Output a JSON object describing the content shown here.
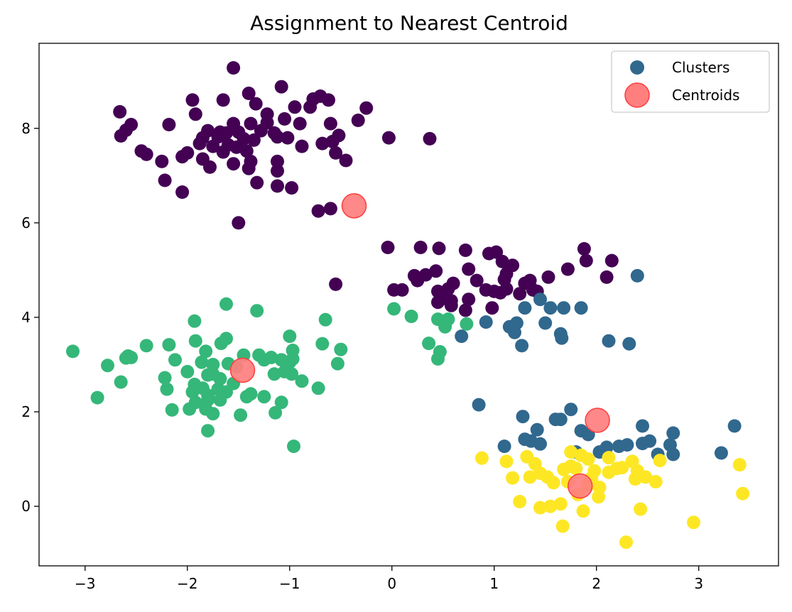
{
  "chart_data": {
    "type": "scatter",
    "title": "Assignment to Nearest Centroid",
    "xlabel": "",
    "ylabel": "",
    "xlim": [
      -3.45,
      3.78
    ],
    "ylim": [
      -1.26,
      9.8
    ],
    "xticks": [
      -3,
      -2,
      -1,
      0,
      1,
      2,
      3
    ],
    "yticks": [
      0,
      2,
      4,
      6,
      8
    ],
    "xtick_labels": [
      "−3",
      "−2",
      "−1",
      "0",
      "1",
      "2",
      "3"
    ],
    "ytick_labels": [
      "0",
      "2",
      "4",
      "6",
      "8"
    ],
    "grid": false,
    "legend": {
      "placement": "top-right",
      "entries": [
        {
          "label": "Clusters",
          "color": "#31688e"
        },
        {
          "label": "Centroids",
          "color": "#ff7f7f"
        }
      ]
    },
    "colors": {
      "cluster_0": "#440154",
      "cluster_1": "#31688e",
      "cluster_2": "#35b779",
      "cluster_3": "#fde725",
      "centroid_fill": "#ff7f7f",
      "centroid_edge": "#ff3b3b"
    },
    "series": [
      {
        "cluster": 0,
        "color": "#440154",
        "points": [
          [
            -1.55,
            9.28
          ],
          [
            -1.08,
            8.88
          ],
          [
            -0.7,
            8.68
          ],
          [
            -0.77,
            8.62
          ],
          [
            -0.62,
            8.6
          ],
          [
            -1.95,
            8.6
          ],
          [
            -1.65,
            8.6
          ],
          [
            -1.4,
            8.74
          ],
          [
            -1.33,
            8.52
          ],
          [
            -0.25,
            8.43
          ],
          [
            -0.95,
            8.45
          ],
          [
            -0.8,
            8.45
          ],
          [
            -2.66,
            8.35
          ],
          [
            -1.92,
            8.3
          ],
          [
            -1.22,
            8.3
          ],
          [
            -1.05,
            8.2
          ],
          [
            -2.55,
            8.08
          ],
          [
            -2.18,
            8.08
          ],
          [
            -1.55,
            8.1
          ],
          [
            -1.38,
            8.1
          ],
          [
            -1.22,
            8.12
          ],
          [
            -0.9,
            8.1
          ],
          [
            -0.6,
            8.1
          ],
          [
            -0.33,
            8.17
          ],
          [
            -2.6,
            7.96
          ],
          [
            -1.8,
            7.95
          ],
          [
            -1.68,
            7.92
          ],
          [
            -1.62,
            7.9
          ],
          [
            -1.5,
            7.92
          ],
          [
            -1.28,
            7.95
          ],
          [
            -1.15,
            7.9
          ],
          [
            -0.03,
            7.8
          ],
          [
            0.37,
            7.78
          ],
          [
            -2.65,
            7.84
          ],
          [
            -1.85,
            7.8
          ],
          [
            -1.7,
            7.82
          ],
          [
            -1.45,
            7.78
          ],
          [
            -1.35,
            7.75
          ],
          [
            -1.12,
            7.82
          ],
          [
            -1.02,
            7.8
          ],
          [
            -0.52,
            7.85
          ],
          [
            -0.68,
            7.68
          ],
          [
            -0.58,
            7.72
          ],
          [
            -1.88,
            7.68
          ],
          [
            -1.75,
            7.62
          ],
          [
            -1.6,
            7.65
          ],
          [
            -1.52,
            7.6
          ],
          [
            -0.88,
            7.62
          ],
          [
            -2.45,
            7.52
          ],
          [
            -2.4,
            7.45
          ],
          [
            -2.05,
            7.4
          ],
          [
            -2.0,
            7.48
          ],
          [
            -1.65,
            7.5
          ],
          [
            -1.42,
            7.52
          ],
          [
            -0.55,
            7.48
          ],
          [
            -2.25,
            7.3
          ],
          [
            -1.85,
            7.35
          ],
          [
            -1.78,
            7.18
          ],
          [
            -1.55,
            7.25
          ],
          [
            -1.38,
            7.3
          ],
          [
            -1.12,
            7.3
          ],
          [
            -0.45,
            7.32
          ],
          [
            -1.4,
            7.15
          ],
          [
            -1.12,
            7.1
          ],
          [
            -2.22,
            6.9
          ],
          [
            -1.32,
            6.85
          ],
          [
            -1.12,
            6.78
          ],
          [
            -0.98,
            6.74
          ],
          [
            -2.05,
            6.65
          ],
          [
            -0.72,
            6.25
          ],
          [
            -0.6,
            6.3
          ],
          [
            -1.5,
            6.0
          ],
          [
            -0.55,
            4.7
          ],
          [
            -0.04,
            5.48
          ],
          [
            0.28,
            5.48
          ],
          [
            0.46,
            5.46
          ],
          [
            0.72,
            5.42
          ],
          [
            0.95,
            5.35
          ],
          [
            1.02,
            5.38
          ],
          [
            1.08,
            5.18
          ],
          [
            1.18,
            5.1
          ],
          [
            1.88,
            5.45
          ],
          [
            1.9,
            5.2
          ],
          [
            2.15,
            5.2
          ],
          [
            0.75,
            5.02
          ],
          [
            1.12,
            4.92
          ],
          [
            0.22,
            4.88
          ],
          [
            0.33,
            4.9
          ],
          [
            0.43,
            4.98
          ],
          [
            0.6,
            4.72
          ],
          [
            0.83,
            4.78
          ],
          [
            1.1,
            4.8
          ],
          [
            1.3,
            4.72
          ],
          [
            1.35,
            4.78
          ],
          [
            1.53,
            4.85
          ],
          [
            1.72,
            5.02
          ],
          [
            2.1,
            4.85
          ],
          [
            0.25,
            4.78
          ],
          [
            0.55,
            4.6
          ],
          [
            0.92,
            4.58
          ],
          [
            1.0,
            4.55
          ],
          [
            1.06,
            4.52
          ],
          [
            1.12,
            4.6
          ],
          [
            1.25,
            4.5
          ],
          [
            1.42,
            4.55
          ],
          [
            1.38,
            4.58
          ],
          [
            0.02,
            4.58
          ],
          [
            0.1,
            4.58
          ],
          [
            0.45,
            4.55
          ],
          [
            0.52,
            4.4
          ],
          [
            0.58,
            4.35
          ],
          [
            0.45,
            4.32
          ],
          [
            0.75,
            4.38
          ],
          [
            0.58,
            4.25
          ],
          [
            0.72,
            4.15
          ],
          [
            0.98,
            4.2
          ]
        ]
      },
      {
        "cluster": 1,
        "color": "#31688e",
        "points": [
          [
            2.4,
            4.88
          ],
          [
            1.45,
            4.38
          ],
          [
            1.3,
            4.2
          ],
          [
            1.55,
            4.2
          ],
          [
            1.68,
            4.2
          ],
          [
            1.85,
            4.2
          ],
          [
            0.92,
            3.9
          ],
          [
            1.15,
            3.8
          ],
          [
            1.22,
            3.88
          ],
          [
            1.5,
            3.88
          ],
          [
            1.2,
            3.68
          ],
          [
            1.65,
            3.65
          ],
          [
            1.66,
            3.56
          ],
          [
            2.12,
            3.5
          ],
          [
            2.32,
            3.44
          ],
          [
            1.27,
            3.4
          ],
          [
            0.68,
            3.6
          ],
          [
            0.85,
            2.15
          ],
          [
            1.75,
            2.05
          ],
          [
            1.28,
            1.9
          ],
          [
            1.6,
            1.84
          ],
          [
            1.65,
            1.84
          ],
          [
            1.42,
            1.62
          ],
          [
            1.85,
            1.6
          ],
          [
            1.92,
            1.52
          ],
          [
            2.45,
            1.7
          ],
          [
            3.35,
            1.7
          ],
          [
            2.75,
            1.55
          ],
          [
            1.3,
            1.42
          ],
          [
            1.36,
            1.38
          ],
          [
            1.45,
            1.32
          ],
          [
            1.1,
            1.27
          ],
          [
            2.1,
            1.25
          ],
          [
            2.22,
            1.27
          ],
          [
            2.3,
            1.3
          ],
          [
            2.45,
            1.33
          ],
          [
            2.52,
            1.38
          ],
          [
            2.72,
            1.3
          ],
          [
            2.03,
            1.15
          ],
          [
            2.6,
            1.1
          ],
          [
            2.75,
            1.1
          ],
          [
            3.22,
            1.13
          ],
          [
            1.8,
            1.15
          ]
        ]
      },
      {
        "cluster": 2,
        "color": "#35b779",
        "points": [
          [
            -1.62,
            4.28
          ],
          [
            -1.32,
            4.14
          ],
          [
            -1.93,
            3.92
          ],
          [
            -0.65,
            3.95
          ],
          [
            0.02,
            4.18
          ],
          [
            0.19,
            4.02
          ],
          [
            0.45,
            3.96
          ],
          [
            0.55,
            3.96
          ],
          [
            0.73,
            3.86
          ],
          [
            0.52,
            3.8
          ],
          [
            -1.62,
            3.55
          ],
          [
            -1.0,
            3.6
          ],
          [
            -1.92,
            3.5
          ],
          [
            -1.67,
            3.45
          ],
          [
            -0.68,
            3.44
          ],
          [
            0.36,
            3.45
          ],
          [
            -3.12,
            3.28
          ],
          [
            -2.58,
            3.18
          ],
          [
            -2.55,
            3.15
          ],
          [
            -2.6,
            3.14
          ],
          [
            -2.4,
            3.4
          ],
          [
            -2.18,
            3.42
          ],
          [
            -1.82,
            3.28
          ],
          [
            -0.5,
            3.32
          ],
          [
            -0.97,
            3.3
          ],
          [
            -1.3,
            3.2
          ],
          [
            -1.25,
            3.1
          ],
          [
            -1.18,
            3.15
          ],
          [
            -1.08,
            3.1
          ],
          [
            -1.0,
            3.05
          ],
          [
            -0.97,
            3.12
          ],
          [
            -1.45,
            3.2
          ],
          [
            -2.78,
            2.98
          ],
          [
            -2.12,
            3.1
          ],
          [
            -1.86,
            3.05
          ],
          [
            -1.75,
            3.0
          ],
          [
            -1.6,
            3.02
          ],
          [
            -1.52,
            2.95
          ],
          [
            -0.53,
            3.02
          ],
          [
            0.47,
            3.27
          ],
          [
            0.45,
            3.12
          ],
          [
            -2.0,
            2.85
          ],
          [
            -1.8,
            2.78
          ],
          [
            -1.75,
            2.8
          ],
          [
            -1.68,
            2.7
          ],
          [
            -1.55,
            2.6
          ],
          [
            -1.15,
            2.8
          ],
          [
            -1.05,
            2.85
          ],
          [
            -0.98,
            2.8
          ],
          [
            -2.22,
            2.72
          ],
          [
            -2.65,
            2.63
          ],
          [
            -1.93,
            2.58
          ],
          [
            -1.85,
            2.5
          ],
          [
            -1.7,
            2.48
          ],
          [
            -0.88,
            2.65
          ],
          [
            -0.72,
            2.5
          ],
          [
            -2.2,
            2.48
          ],
          [
            -1.95,
            2.42
          ],
          [
            -1.8,
            2.35
          ],
          [
            -1.62,
            2.42
          ],
          [
            -1.38,
            2.38
          ],
          [
            -1.42,
            2.32
          ],
          [
            -1.25,
            2.32
          ],
          [
            -2.88,
            2.3
          ],
          [
            -1.92,
            2.2
          ],
          [
            -1.8,
            2.25
          ],
          [
            -1.68,
            2.25
          ],
          [
            -1.08,
            2.2
          ],
          [
            -2.15,
            2.04
          ],
          [
            -1.98,
            2.06
          ],
          [
            -1.82,
            2.06
          ],
          [
            -1.75,
            1.96
          ],
          [
            -1.48,
            1.93
          ],
          [
            -1.14,
            1.98
          ],
          [
            -1.8,
            1.6
          ],
          [
            -0.96,
            1.27
          ]
        ]
      },
      {
        "cluster": 3,
        "color": "#fde725",
        "points": [
          [
            0.88,
            1.02
          ],
          [
            1.12,
            0.95
          ],
          [
            1.32,
            1.05
          ],
          [
            1.4,
            0.9
          ],
          [
            1.75,
            1.15
          ],
          [
            1.85,
            1.08
          ],
          [
            1.92,
            1.0
          ],
          [
            2.12,
            1.03
          ],
          [
            2.35,
            0.95
          ],
          [
            2.62,
            0.97
          ],
          [
            3.4,
            0.88
          ],
          [
            1.75,
            0.85
          ],
          [
            1.8,
            0.8
          ],
          [
            1.68,
            0.78
          ],
          [
            1.98,
            0.75
          ],
          [
            2.2,
            0.8
          ],
          [
            1.45,
            0.7
          ],
          [
            1.52,
            0.62
          ],
          [
            1.35,
            0.62
          ],
          [
            1.18,
            0.6
          ],
          [
            1.95,
            0.6
          ],
          [
            2.12,
            0.72
          ],
          [
            2.25,
            0.82
          ],
          [
            2.4,
            0.75
          ],
          [
            2.48,
            0.62
          ],
          [
            2.58,
            0.52
          ],
          [
            2.38,
            0.58
          ],
          [
            1.58,
            0.5
          ],
          [
            1.72,
            0.52
          ],
          [
            1.92,
            0.45
          ],
          [
            2.03,
            0.4
          ],
          [
            2.02,
            0.2
          ],
          [
            1.82,
            0.25
          ],
          [
            1.65,
            0.05
          ],
          [
            1.55,
            0.0
          ],
          [
            1.45,
            -0.03
          ],
          [
            1.25,
            0.1
          ],
          [
            2.43,
            -0.06
          ],
          [
            1.87,
            -0.1
          ],
          [
            1.67,
            -0.42
          ],
          [
            2.95,
            -0.34
          ],
          [
            2.29,
            -0.76
          ],
          [
            3.43,
            0.27
          ],
          [
            1.95,
            0.55
          ]
        ]
      }
    ],
    "centroids": [
      [
        -0.37,
        6.36
      ],
      [
        -1.46,
        2.88
      ],
      [
        2.01,
        1.82
      ],
      [
        1.84,
        0.43
      ]
    ]
  }
}
